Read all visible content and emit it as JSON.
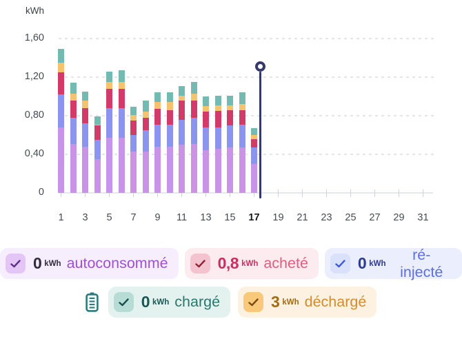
{
  "axis": {
    "unit_title": "kWh",
    "y_ticks": [
      {
        "label": "1,60",
        "value": 1.6
      },
      {
        "label": "1,20",
        "value": 1.2
      },
      {
        "label": "0,80",
        "value": 0.8
      },
      {
        "label": "0,40",
        "value": 0.4
      },
      {
        "label": "0",
        "value": 0
      }
    ],
    "x_ticks": [
      {
        "label": "1",
        "day": 1
      },
      {
        "label": "3",
        "day": 3
      },
      {
        "label": "5",
        "day": 5
      },
      {
        "label": "7",
        "day": 7
      },
      {
        "label": "9",
        "day": 9
      },
      {
        "label": "11",
        "day": 11
      },
      {
        "label": "13",
        "day": 13
      },
      {
        "label": "15",
        "day": 15
      },
      {
        "label": "17",
        "day": 17,
        "current": true
      },
      {
        "label": "19",
        "day": 19
      },
      {
        "label": "21",
        "day": 21
      },
      {
        "label": "23",
        "day": 23
      },
      {
        "label": "25",
        "day": 25
      },
      {
        "label": "27",
        "day": 27
      },
      {
        "label": "29",
        "day": 29
      },
      {
        "label": "31",
        "day": 31
      }
    ]
  },
  "chart_data": {
    "type": "bar",
    "stacked": true,
    "unit": "kWh",
    "x_domain": [
      1,
      31
    ],
    "ylim": [
      0,
      1.6
    ],
    "grid": "dashed-horizontal",
    "x": [
      1,
      2,
      3,
      4,
      5,
      6,
      7,
      8,
      9,
      10,
      11,
      12,
      13,
      14,
      15,
      16,
      17
    ],
    "series": [
      {
        "name": "autoconsommé",
        "color": "#c993e8",
        "values": [
          0.68,
          0.51,
          0.48,
          0.35,
          0.57,
          0.57,
          0.43,
          0.43,
          0.48,
          0.48,
          0.5,
          0.51,
          0.44,
          0.46,
          0.47,
          0.47,
          0.3
        ]
      },
      {
        "name": "ré-injecté",
        "color": "#8b94ef",
        "values": [
          0.34,
          0.27,
          0.24,
          0.2,
          0.31,
          0.31,
          0.17,
          0.22,
          0.23,
          0.23,
          0.26,
          0.27,
          0.24,
          0.22,
          0.23,
          0.24,
          0.17
        ]
      },
      {
        "name": "acheté",
        "color": "#d23a69",
        "values": [
          0.23,
          0.18,
          0.16,
          0.15,
          0.2,
          0.2,
          0.15,
          0.13,
          0.16,
          0.15,
          0.2,
          0.18,
          0.16,
          0.17,
          0.16,
          0.15,
          0.09
        ]
      },
      {
        "name": "déchargé",
        "color": "#f5c36e",
        "values": [
          0.1,
          0.07,
          0.08,
          0.01,
          0.07,
          0.07,
          0.06,
          0.06,
          0.07,
          0.08,
          0.05,
          0.07,
          0.06,
          0.06,
          0.05,
          0.06,
          0.04
        ]
      },
      {
        "name": "chargé",
        "color": "#72bab2",
        "values": [
          0.14,
          0.11,
          0.09,
          0.08,
          0.11,
          0.12,
          0.08,
          0.12,
          0.1,
          0.1,
          0.1,
          0.12,
          0.1,
          0.1,
          0.1,
          0.12,
          0.07
        ]
      }
    ],
    "current_day_marker": {
      "day": 17,
      "top_value": 1.31,
      "color": "#35386a"
    }
  },
  "legend": {
    "battery_icon_color": "#2a7b7e",
    "chips": [
      {
        "value": "0",
        "unit": "kWh",
        "label": "autoconsommé",
        "colors": {
          "bg": "#f6eefc",
          "box": "#e3c6f6",
          "check": "#5d2e88",
          "valc": "#322c3e",
          "labc": "#a050d4"
        }
      },
      {
        "value": "0,8",
        "unit": "kWh",
        "label": "acheté",
        "colors": {
          "bg": "#fdecef",
          "box": "#f3c4cf",
          "check": "#8e2136",
          "valc": "#cb2e61",
          "labc": "#e25c7f"
        }
      },
      {
        "value": "0",
        "unit": "kWh",
        "label": "ré-injecté",
        "colors": {
          "bg": "#eaeefd",
          "box": "#dae1fb",
          "check": "#3c5cd7",
          "valc": "#2c3c92",
          "labc": "#5b6fe2"
        }
      },
      {
        "value": "0",
        "unit": "kWh",
        "label": "chargé",
        "colors": {
          "bg": "#e4f2ef",
          "box": "#b7dcd5",
          "check": "#184f4d",
          "valc": "#185854",
          "labc": "#2a766e"
        }
      },
      {
        "value": "3",
        "unit": "kWh",
        "label": "déchargé",
        "colors": {
          "bg": "#fdf2e1",
          "box": "#f8c87b",
          "check": "#7c4a10",
          "valc": "#a36a12",
          "labc": "#d78b26"
        }
      }
    ]
  }
}
